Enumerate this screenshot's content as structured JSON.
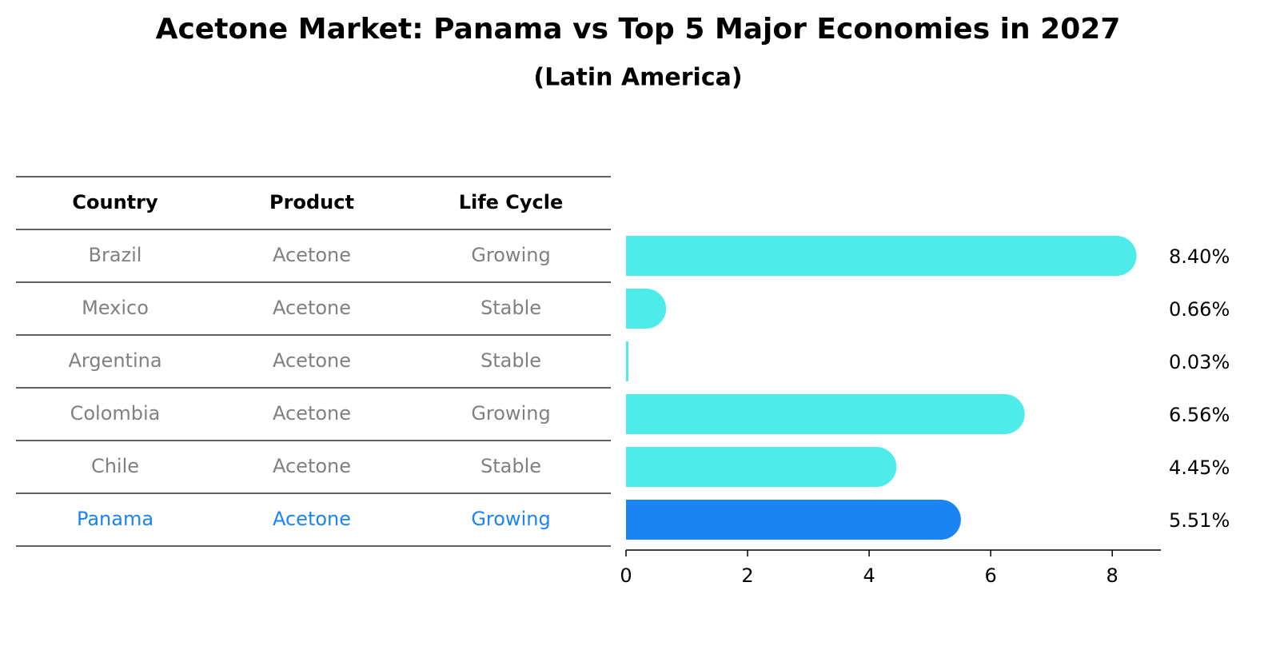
{
  "chart_data": {
    "type": "bar",
    "title": "Acetone Market: Panama vs Top 5 Major Economies in 2027",
    "subtitle": "(Latin America)",
    "table": {
      "columns": [
        "Country",
        "Product",
        "Life Cycle"
      ],
      "rows": [
        [
          "Brazil",
          "Acetone",
          "Growing"
        ],
        [
          "Mexico",
          "Acetone",
          "Stable"
        ],
        [
          "Argentina",
          "Acetone",
          "Stable"
        ],
        [
          "Colombia",
          "Acetone",
          "Growing"
        ],
        [
          "Chile",
          "Acetone",
          "Stable"
        ],
        [
          "Panama",
          "Acetone",
          "Growing"
        ]
      ]
    },
    "categories": [
      "Brazil",
      "Mexico",
      "Argentina",
      "Colombia",
      "Chile",
      "Panama"
    ],
    "values": [
      8.4,
      0.66,
      0.03,
      6.56,
      4.45,
      5.51
    ],
    "value_labels": [
      "8.40%",
      "0.66%",
      "0.03%",
      "6.56%",
      "4.45%",
      "5.51%"
    ],
    "highlight": "Panama",
    "xlim": [
      0,
      8.8
    ],
    "xticks": [
      0,
      2,
      4,
      6,
      8
    ],
    "xtick_labels": [
      "0",
      "2",
      "4",
      "6",
      "8"
    ],
    "grid": false,
    "legend": "none",
    "colors": {
      "bar": "#4EEBEB",
      "highlight_bar": "#1A84F5",
      "text_muted": "#808080",
      "text_highlight": "#1A84F5",
      "text": "#000000"
    }
  }
}
